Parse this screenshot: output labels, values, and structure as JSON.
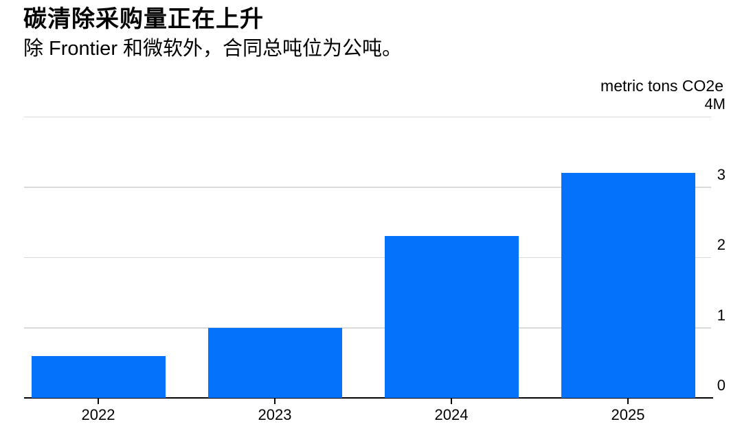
{
  "chart_data": {
    "type": "bar",
    "title": "碳清除采购量正在上升",
    "subtitle": "除 Frontier 和微软外，合同总吨位为公吨。",
    "xlabel": "",
    "ylabel": "metric tons CO2e",
    "categories": [
      "2022",
      "2023",
      "2024",
      "2025"
    ],
    "values": [
      0.6,
      1.0,
      2.3,
      3.2
    ],
    "ylim": [
      0,
      4
    ],
    "yticks": [
      {
        "value": 0,
        "label": "0"
      },
      {
        "value": 1,
        "label": "1"
      },
      {
        "value": 2,
        "label": "2"
      },
      {
        "value": 3,
        "label": "3"
      },
      {
        "value": 4,
        "label": "4M"
      }
    ],
    "grid": true,
    "legend": false,
    "colors": {
      "bar": "#0572FC",
      "gridline": "#D9D9D9",
      "axis": "#000000",
      "text": "#000000"
    }
  }
}
